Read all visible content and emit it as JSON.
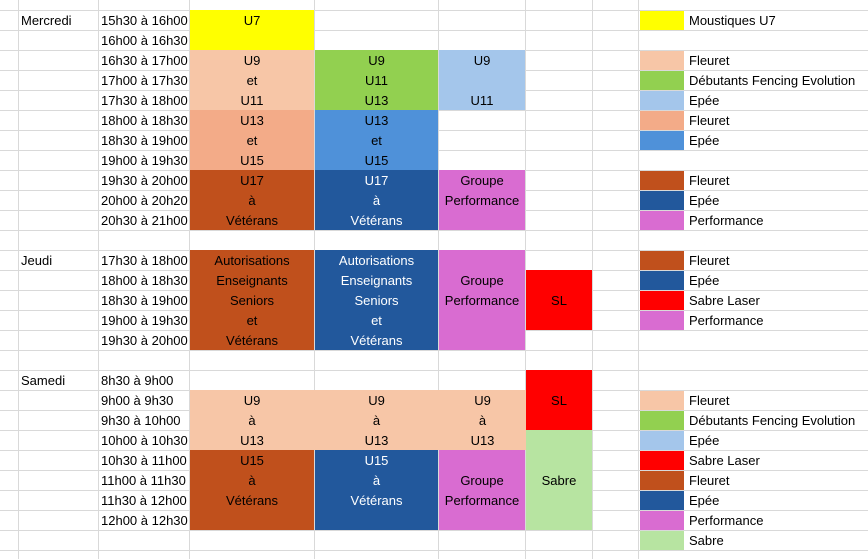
{
  "colors": {
    "yellow": "#ffff00",
    "peach": "#f7c6a7",
    "salmon": "#f3ab88",
    "rust": "#c0501c",
    "lightgreen": "#92d050",
    "lightblue": "#a4c6eb",
    "midblue": "#4f91d9",
    "darkblue": "#22589c",
    "magenta": "#d96cd1",
    "red": "#ff0000",
    "palegreen": "#b7e4a1"
  },
  "days": {
    "mercredi": "Mercredi",
    "jeudi": "Jeudi",
    "samedi": "Samedi"
  },
  "times": {
    "mercredi": [
      "15h30 à 16h00",
      "16h00 à 16h30",
      "16h30 à 17h00",
      "17h00 à 17h30",
      "17h30 à 18h00",
      "18h00 à 18h30",
      "18h30 à 19h00",
      "19h00 à 19h30",
      "19h30 à 20h00",
      "20h00 à 20h20",
      "20h30 à 21h00"
    ],
    "jeudi": [
      "17h30 à 18h00",
      "18h00 à 18h30",
      "18h30 à 19h00",
      "19h00 à 19h30",
      "19h30 à 20h00"
    ],
    "samedi": [
      "8h30 à 9h00",
      "9h00 à 9h30",
      "9h30 à 10h00",
      "10h00 à 10h30",
      "10h30 à 11h00",
      "11h00 à 11h30",
      "11h30 à 12h00",
      "12h00 à 12h30"
    ]
  },
  "blocks": {
    "wed_u7": "U7",
    "wed_c2_1": [
      "U9",
      "et",
      "U11"
    ],
    "wed_c3_1": [
      "U9",
      "U11",
      "U13"
    ],
    "wed_c4_1": [
      "U9",
      "U11"
    ],
    "wed_c2_2": [
      "U13",
      "et",
      "U15"
    ],
    "wed_c3_2": [
      "U13",
      "et",
      "U15"
    ],
    "wed_c2_3": [
      "U17",
      "à",
      "Vétérans"
    ],
    "wed_c3_3": [
      "U17",
      "à",
      "Vétérans"
    ],
    "wed_c4_3": [
      "Groupe",
      "Performance"
    ],
    "thu_c2": [
      "Autorisations",
      "Enseignants",
      "Seniors",
      "et",
      "Vétérans"
    ],
    "thu_c3": [
      "Autorisations",
      "Enseignants",
      "Seniors",
      "et",
      "Vétérans"
    ],
    "thu_c4": [
      "Groupe",
      "Performance"
    ],
    "thu_c5": "SL",
    "sat_c5_sl": "SL",
    "sat_c2_1": [
      "U9",
      "à",
      "U13"
    ],
    "sat_c3_1": [
      "U9",
      "à",
      "U13"
    ],
    "sat_c4_1": [
      "U9",
      "à",
      "U13"
    ],
    "sat_c2_2": [
      "U15",
      "à",
      "Vétérans"
    ],
    "sat_c3_2": [
      "U15",
      "à",
      "Vétérans"
    ],
    "sat_c4_2": [
      "Groupe",
      "Performance"
    ],
    "sat_c5_sabre": "Sabre"
  },
  "legend": {
    "wed": [
      "Moustiques U7",
      "Fleuret",
      "Débutants Fencing Evolution",
      "Epée",
      "Fleuret",
      "Epée",
      "Fleuret",
      "Epée",
      "Performance"
    ],
    "thu": [
      "Fleuret",
      "Epée",
      "Sabre Laser",
      "Performance"
    ],
    "sat": [
      "Fleuret",
      "Débutants Fencing Evolution",
      "Epée",
      "Sabre Laser",
      "Fleuret",
      "Epée",
      "Performance",
      "Sabre"
    ]
  }
}
